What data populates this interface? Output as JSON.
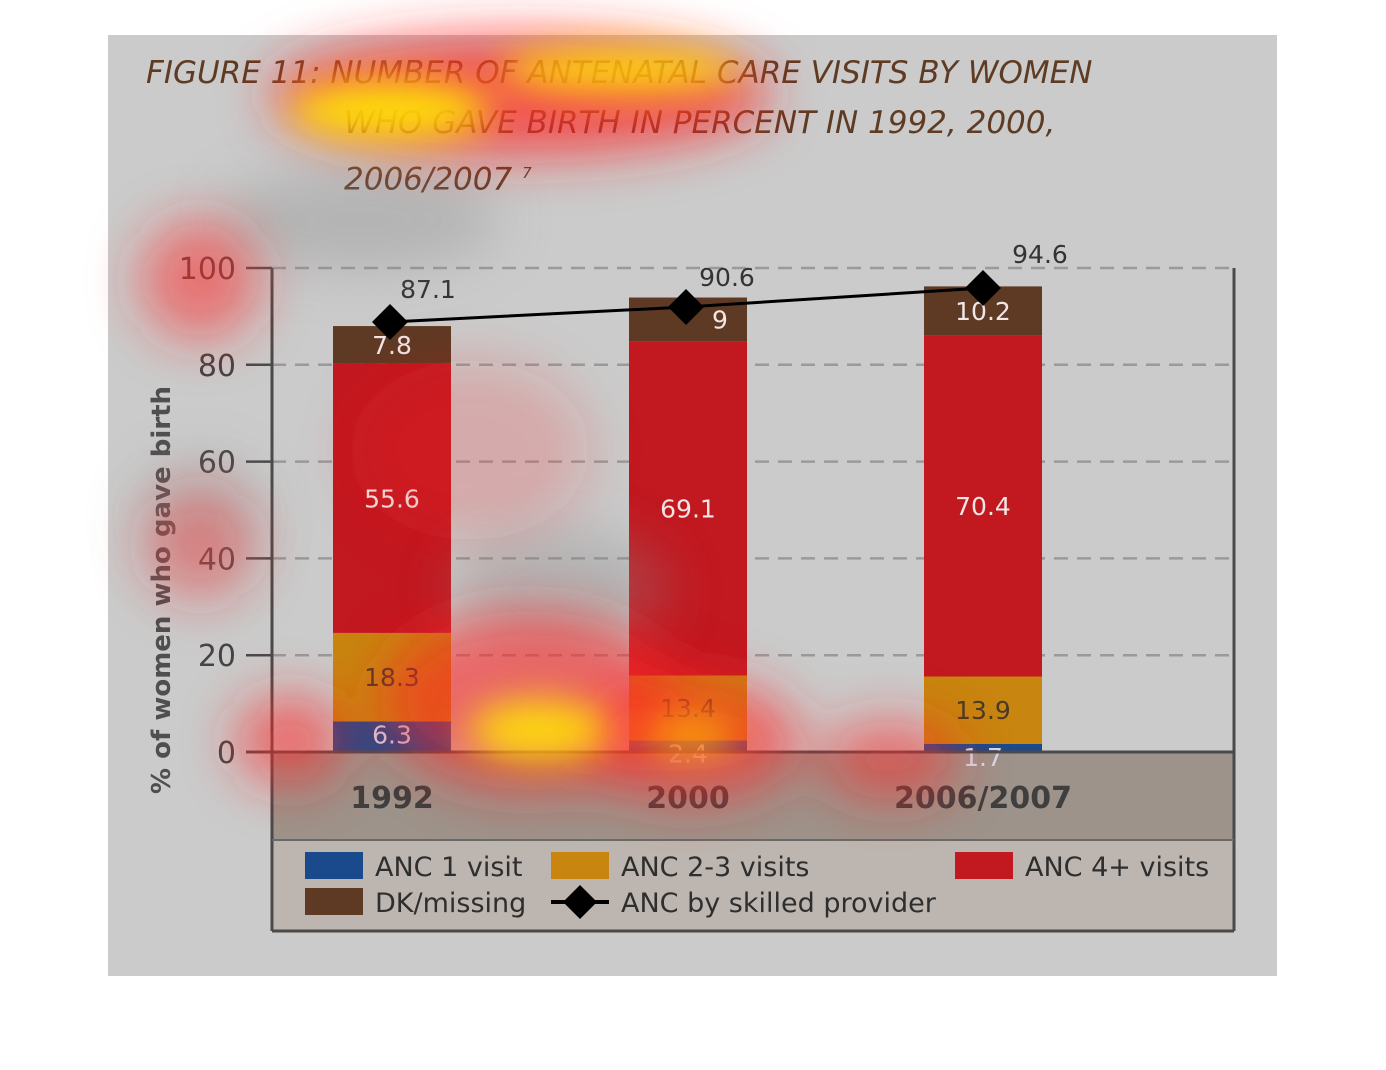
{
  "title": {
    "line1": "FIGURE 11: NUMBER OF ANTENATAL CARE VISITS  BY WOMEN",
    "line2": "WHO GAVE BIRTH IN PERCENT IN 1992, 2000,",
    "line3": "2006/2007",
    "footnote_mark": "7"
  },
  "chart_data": {
    "type": "bar",
    "stacked": true,
    "categories": [
      "1992",
      "2000",
      "2006/2007"
    ],
    "ylabel": "% of women who gave birth",
    "ylim": [
      0,
      100
    ],
    "yticks": [
      "0",
      "20",
      "40",
      "60",
      "80",
      "100"
    ],
    "grid": "horizontal dashed",
    "legend_position": "bottom",
    "series": [
      {
        "name": "ANC 1 visit",
        "color": "#1a4a8c",
        "values": [
          6.3,
          2.4,
          1.7
        ],
        "labels": [
          "6.3",
          "2.4",
          "1.7"
        ]
      },
      {
        "name": "ANC 2-3 visits",
        "color": "#c8850f",
        "values": [
          18.3,
          13.4,
          13.9
        ],
        "labels": [
          "18.3",
          "13.4",
          "13.9"
        ]
      },
      {
        "name": "ANC 4+ visits",
        "color": "#c21820",
        "values": [
          55.6,
          69.1,
          70.4
        ],
        "labels": [
          "55.6",
          "69.1",
          "70.4"
        ]
      },
      {
        "name": "DK/missing",
        "color": "#5e3a24",
        "values": [
          7.8,
          9,
          10.2
        ],
        "labels": [
          "7.8",
          "9",
          "10.2"
        ]
      }
    ],
    "line_series": {
      "name": "ANC by skilled provider",
      "type": "line",
      "marker": "diamond",
      "color": "#000000",
      "values": [
        87.1,
        90.6,
        94.6
      ],
      "labels": [
        "87.1",
        "90.6",
        "94.6"
      ]
    }
  }
}
